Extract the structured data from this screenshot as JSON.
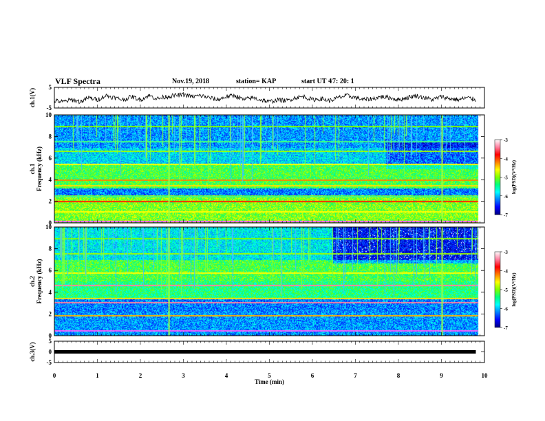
{
  "header": {
    "title": "VLF Spectra",
    "date": "Nov.19, 2018",
    "station": "station= KAP",
    "start_ut_label": "start  UT  =",
    "start_ut_value": "17: 20: 1"
  },
  "chart_data": [
    {
      "type": "line",
      "panel": "ch1-waveform",
      "ylabel": "ch.1(V)",
      "ylim": [
        -5,
        5
      ],
      "yticks": [
        "5",
        "-5"
      ],
      "xlim": [
        0,
        10
      ],
      "series": [
        {
          "x": [
            0,
            0.2,
            0.4,
            0.6,
            0.8,
            1.0,
            1.2,
            1.4,
            1.6,
            1.8,
            2.0,
            2.2,
            2.4,
            2.6,
            2.8,
            3.0,
            3.2,
            3.4,
            3.6,
            3.8,
            4.0,
            4.2,
            4.4,
            4.6,
            4.8,
            5.0,
            5.2,
            5.4,
            5.6,
            5.8,
            6.0,
            6.2,
            6.4,
            6.6,
            6.8,
            7.0,
            7.2,
            7.4,
            7.6,
            7.8,
            8.0,
            8.2,
            8.4,
            8.6,
            8.8,
            9.0,
            9.2,
            9.4,
            9.6,
            9.8
          ],
          "y": [
            -1.5,
            -2,
            -1,
            -2,
            0,
            -1,
            1,
            0,
            -1,
            0.5,
            -1,
            1,
            -0.5,
            0.5,
            1,
            1.5,
            0.5,
            1,
            0,
            -1,
            0.5,
            1,
            -1,
            0,
            -1,
            -2,
            -1,
            -1.5,
            0,
            0.5,
            -1,
            -0.5,
            -1.5,
            0,
            1,
            0,
            -1,
            -0.5,
            0.5,
            0,
            -1,
            0,
            1,
            0,
            -1,
            0.5,
            -0.5,
            -1,
            0,
            -1
          ]
        }
      ]
    },
    {
      "type": "heatmap",
      "panel": "ch1-spectrogram",
      "ylabel": "ch.1 Frequency (kHz)",
      "ylim": [
        0,
        10
      ],
      "yticks": [
        "0",
        "2",
        "4",
        "6",
        "8",
        "10"
      ],
      "xlim": [
        0,
        10
      ],
      "colorbar": {
        "label": "log(PSD)(V²/Hz)",
        "range": [
          -7,
          -3
        ],
        "ticks": [
          "-3",
          "-4",
          "-5",
          "-6",
          "-7"
        ]
      }
    },
    {
      "type": "heatmap",
      "panel": "ch2-spectrogram",
      "ylabel": "ch.2 Frequency (kHz)",
      "ylim": [
        0,
        10
      ],
      "yticks": [
        "0",
        "2",
        "4",
        "6",
        "8",
        "10"
      ],
      "xlim": [
        0,
        10
      ],
      "colorbar": {
        "label": "log(PSD)(V²/Hz)",
        "range": [
          -7,
          -3
        ],
        "ticks": [
          "-3",
          "-4",
          "-5",
          "-6",
          "-7"
        ]
      }
    },
    {
      "type": "line",
      "panel": "ch3-waveform",
      "ylabel": "ch.3(V)",
      "ylim": [
        -5,
        5
      ],
      "yticks": [
        "5",
        "0",
        "-5"
      ],
      "xlim": [
        0,
        10
      ],
      "series": [
        {
          "x": [
            0,
            9.8
          ],
          "y": [
            0,
            0
          ]
        }
      ]
    }
  ],
  "x_axis": {
    "label": "Time (min)",
    "ticks": [
      "0",
      "1",
      "2",
      "3",
      "4",
      "5",
      "6",
      "7",
      "8",
      "9",
      "10"
    ]
  },
  "colors": {
    "colormap": [
      "#000080",
      "#0000ff",
      "#0080ff",
      "#00ffff",
      "#00ff80",
      "#80ff00",
      "#ffff00",
      "#ff8000",
      "#ff0000",
      "#ff80a0",
      "#ffffff"
    ]
  }
}
